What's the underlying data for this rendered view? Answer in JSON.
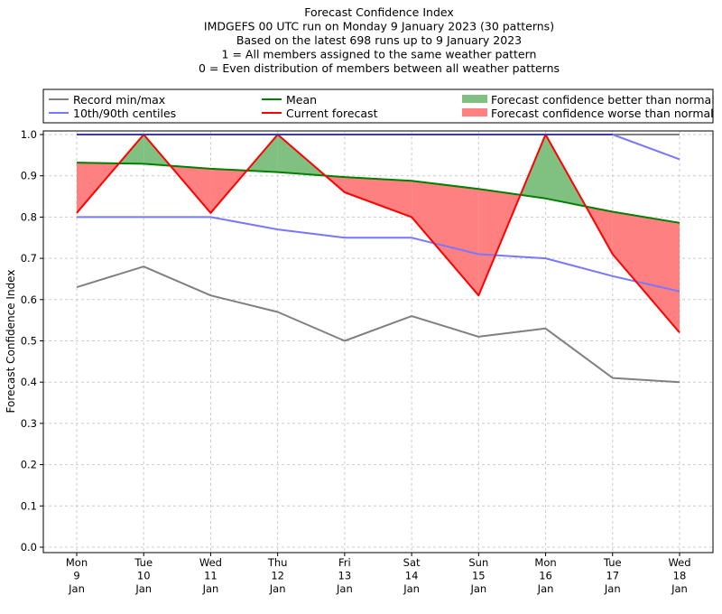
{
  "chart_data": {
    "type": "line",
    "title_lines": [
      "Forecast Confidence Index",
      "IMDGEFS 00 UTC run on Monday 9 January 2023 (30 patterns)",
      "Based on the latest 698 runs up to 9 January 2023",
      "1 = All members assigned to the same weather pattern",
      "0 = Even distribution of members between all weather patterns"
    ],
    "ylabel": "Forecast Confidence Index",
    "xlabel": "",
    "ylim": [
      0,
      1
    ],
    "yticks": [
      "0.0",
      "0.1",
      "0.2",
      "0.3",
      "0.4",
      "0.5",
      "0.6",
      "0.7",
      "0.8",
      "0.9",
      "1.0"
    ],
    "grid": true,
    "legend_placement": "top, above plot",
    "categories": [
      [
        "Mon",
        "9",
        "Jan"
      ],
      [
        "Tue",
        "10",
        "Jan"
      ],
      [
        "Wed",
        "11",
        "Jan"
      ],
      [
        "Thu",
        "12",
        "Jan"
      ],
      [
        "Fri",
        "13",
        "Jan"
      ],
      [
        "Sat",
        "14",
        "Jan"
      ],
      [
        "Sun",
        "15",
        "Jan"
      ],
      [
        "Mon",
        "16",
        "Jan"
      ],
      [
        "Tue",
        "17",
        "Jan"
      ],
      [
        "Wed",
        "18",
        "Jan"
      ]
    ],
    "series": [
      {
        "key": "record_min",
        "name": "Record min/max",
        "color": "#808080",
        "values": [
          0.63,
          0.68,
          0.61,
          0.57,
          0.5,
          0.56,
          0.51,
          0.53,
          0.41,
          0.4
        ]
      },
      {
        "key": "record_max",
        "color": "#808080",
        "values": [
          1.0,
          1.0,
          1.0,
          1.0,
          1.0,
          1.0,
          1.0,
          1.0,
          1.0,
          1.0
        ]
      },
      {
        "key": "p10",
        "name": "10th/90th centiles",
        "color": "#7777ff",
        "values": [
          0.8,
          0.8,
          0.8,
          0.77,
          0.75,
          0.75,
          0.71,
          0.7,
          0.657,
          0.62
        ]
      },
      {
        "key": "p90",
        "color": "#7777ff",
        "values": [
          1.0,
          1.0,
          1.0,
          1.0,
          1.0,
          1.0,
          1.0,
          1.0,
          1.0,
          0.94
        ]
      },
      {
        "key": "mean",
        "name": "Mean",
        "color": "#008000",
        "values": [
          0.932,
          0.929,
          0.917,
          0.909,
          0.897,
          0.888,
          0.868,
          0.845,
          0.813,
          0.786
        ]
      },
      {
        "key": "current",
        "name": "Current forecast",
        "color": "#ff0000",
        "values": [
          0.81,
          1.0,
          0.81,
          1.0,
          0.86,
          0.8,
          0.61,
          1.0,
          0.71,
          0.52
        ]
      }
    ],
    "fills": [
      {
        "name": "Forecast confidence better than normal",
        "color": "#80c080"
      },
      {
        "name": "Forecast confidence worse than normal",
        "color": "#ff8080"
      }
    ]
  }
}
